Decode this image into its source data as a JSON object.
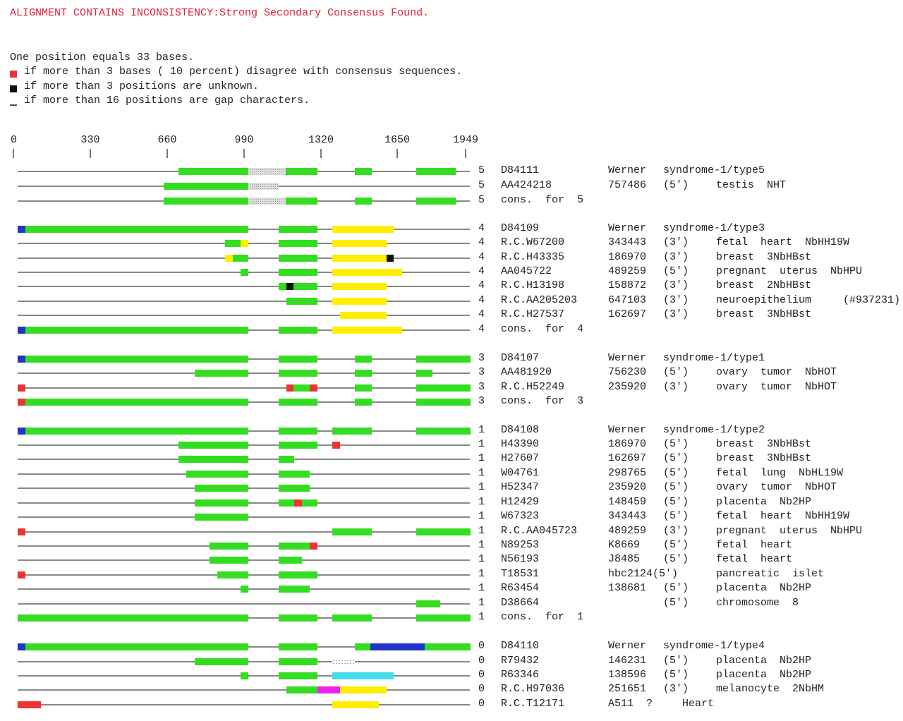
{
  "header": {
    "title": "ALIGNMENT CONTAINS INCONSISTENCY:Strong Secondary Consensus Found."
  },
  "legend": {
    "scale": "One position equals 33 bases.",
    "items": [
      "if more than 3 bases ( 10 percent) disagree with consensus sequences.",
      "if more than 3 positions are unknown.",
      "if more than 16 positions are gap characters."
    ]
  },
  "ruler": {
    "ticks": [
      "0",
      "330",
      "660",
      "990",
      "1320",
      "1650",
      "1949"
    ]
  },
  "groups": [
    {
      "rows": [
        {
          "count": "5",
          "id": "D84111",
          "cols": [
            "Werner",
            "syndrome-1/type5"
          ]
        },
        {
          "count": "5",
          "id": "AA424218",
          "cols": [
            "757486",
            "(5')",
            "testis  NHT"
          ]
        },
        {
          "count": "5",
          "id": "cons.  for  5",
          "cols": []
        }
      ]
    },
    {
      "rows": [
        {
          "count": "4",
          "id": "D84109",
          "cols": [
            "Werner",
            "syndrome-1/type3"
          ]
        },
        {
          "count": "4",
          "id": "R.C.W67200",
          "cols": [
            "343443",
            "(3')",
            "fetal  heart  NbHH19W"
          ]
        },
        {
          "count": "4",
          "id": "R.C.H43335",
          "cols": [
            "186970",
            "(3')",
            "breast  3NbHBst"
          ]
        },
        {
          "count": "4",
          "id": "AA045722",
          "cols": [
            "489259",
            "(5')",
            "pregnant  uterus  NbHPU"
          ]
        },
        {
          "count": "4",
          "id": "R.C.H13198",
          "cols": [
            "158872",
            "(3')",
            "breast  2NbHBst"
          ]
        },
        {
          "count": "4",
          "id": "R.C.AA205203",
          "cols": [
            "647103",
            "(3')",
            "neuroepithelium     (#937231)"
          ]
        },
        {
          "count": "4",
          "id": "R.C.H27537",
          "cols": [
            "162697",
            "(3')",
            "breast  3NbHBst"
          ]
        },
        {
          "count": "4",
          "id": "cons.  for  4",
          "cols": []
        }
      ]
    },
    {
      "rows": [
        {
          "count": "3",
          "id": "D84107",
          "cols": [
            "Werner",
            "syndrome-1/type1"
          ]
        },
        {
          "count": "3",
          "id": "AA481920",
          "cols": [
            "756230",
            "(5')",
            "ovary  tumor  NbHOT"
          ]
        },
        {
          "count": "3",
          "id": "R.C.H52249",
          "cols": [
            "235920",
            "(3')",
            "ovary  tumor  NbHOT"
          ]
        },
        {
          "count": "3",
          "id": "cons.  for  3",
          "cols": []
        }
      ]
    },
    {
      "rows": [
        {
          "count": "1",
          "id": "D84108",
          "cols": [
            "Werner",
            "syndrome-1/type2"
          ]
        },
        {
          "count": "1",
          "id": "H43390",
          "cols": [
            "186970",
            "(5')",
            "breast  3NbHBst"
          ]
        },
        {
          "count": "1",
          "id": "H27607",
          "cols": [
            "162697",
            "(5')",
            "breast  3NbHBst"
          ]
        },
        {
          "count": "1",
          "id": "W04761",
          "cols": [
            "298765",
            "(5')",
            "fetal  lung  NbHL19W"
          ]
        },
        {
          "count": "1",
          "id": "H52347",
          "cols": [
            "235920",
            "(5')",
            "ovary  tumor  NbHOT"
          ]
        },
        {
          "count": "1",
          "id": "H12429",
          "cols": [
            "148459",
            "(5')",
            "placenta  Nb2HP"
          ]
        },
        {
          "count": "1",
          "id": "W67323",
          "cols": [
            "343443",
            "(5')",
            "fetal  heart  NbHH19W"
          ]
        },
        {
          "count": "1",
          "id": "R.C.AA045723",
          "cols": [
            "489259",
            "(3')",
            "pregnant  uterus  NbHPU"
          ]
        },
        {
          "count": "1",
          "id": "N89253",
          "cols": [
            "K8669",
            "(5')",
            "fetal  heart"
          ]
        },
        {
          "count": "1",
          "id": "N56193",
          "cols": [
            "J8485",
            "(5')",
            "fetal  heart"
          ]
        },
        {
          "count": "1",
          "id": "T18531",
          "cols": [
            "hbc2124(5')",
            null,
            "pancreatic  islet"
          ]
        },
        {
          "count": "1",
          "id": "R63454",
          "cols": [
            "138681",
            "(5')",
            "placenta  Nb2HP"
          ]
        },
        {
          "count": "1",
          "id": "D38664",
          "cols": [
            null,
            "(5')",
            "chromosome  8"
          ]
        },
        {
          "count": "1",
          "id": "cons.  for  1",
          "cols": []
        }
      ]
    },
    {
      "rows": [
        {
          "count": "0",
          "id": "D84110",
          "cols": [
            "Werner",
            "syndrome-1/type4"
          ]
        },
        {
          "count": "0",
          "id": "R79432",
          "cols": [
            "146231",
            "(5')",
            "placenta  Nb2HP"
          ]
        },
        {
          "count": "0",
          "id": "R63346",
          "cols": [
            "138596",
            "(5')",
            "placenta  Nb2HP"
          ]
        },
        {
          "count": "0",
          "id": "R.C.H97036",
          "cols": [
            "251651",
            "(3')",
            "melanocyte  2NbHM"
          ]
        },
        {
          "count": "0",
          "id": "R.C.T12171",
          "cols": [
            "A511  ?",
            "   Heart"
          ]
        }
      ]
    }
  ]
}
